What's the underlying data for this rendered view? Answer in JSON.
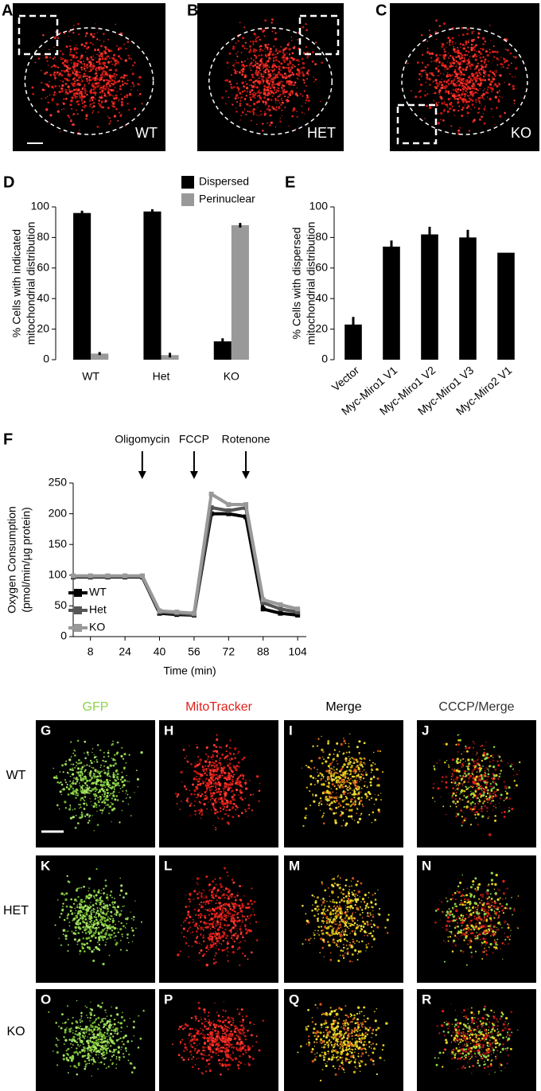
{
  "image_panels": [
    {
      "label": "A",
      "text": "WT"
    },
    {
      "label": "B",
      "text": "HET"
    },
    {
      "label": "C",
      "text": "KO"
    }
  ],
  "chart_data": [
    {
      "type": "bar",
      "label": "D",
      "y_label": [
        "% Cells with indicated",
        "mitochondrial distribution"
      ],
      "categories": [
        "WT",
        "Het",
        "KO"
      ],
      "series": [
        {
          "name": "Dispersed",
          "color": "#000000",
          "values": [
            96,
            97,
            12
          ],
          "errors": [
            1.5,
            1.5,
            2
          ]
        },
        {
          "name": "Perinuclear",
          "color": "#999999",
          "values": [
            4,
            3,
            88
          ],
          "errors": [
            1,
            1.5,
            1.5
          ]
        }
      ],
      "ylim": [
        0,
        100
      ],
      "yticks": [
        0,
        20,
        40,
        60,
        80,
        100
      ],
      "legend": "top-right"
    },
    {
      "type": "bar",
      "label": "E",
      "y_label": [
        "% Cells with dispersed",
        "mitochondrial distribution"
      ],
      "categories": [
        "Vector",
        "Myc-Miro1 V1",
        "Myc-Miro1 V2",
        "Myc-Miro1 V3",
        "Myc-Miro2 V1"
      ],
      "values": [
        23,
        74,
        82,
        80,
        70
      ],
      "errors": [
        5,
        4,
        5,
        5,
        0
      ],
      "color": "#000000",
      "ylim": [
        0,
        100
      ],
      "yticks": [
        0,
        20,
        40,
        60,
        80,
        100
      ]
    },
    {
      "type": "line",
      "label": "F",
      "x_label": "Time (min)",
      "y_label": [
        "Oxygen Consumption",
        "(pmol/min/µg protein)"
      ],
      "x": [
        0,
        8,
        16,
        24,
        32,
        40,
        48,
        56,
        64,
        72,
        80,
        88,
        96,
        104
      ],
      "series": [
        {
          "name": "WT",
          "color": "#000000",
          "values": [
            97,
            97,
            97,
            97,
            97,
            38,
            36,
            35,
            200,
            200,
            195,
            45,
            38,
            35
          ]
        },
        {
          "name": "Het",
          "color": "#555555",
          "values": [
            98,
            98,
            98,
            98,
            98,
            40,
            38,
            36,
            210,
            205,
            210,
            55,
            45,
            40
          ]
        },
        {
          "name": "KO",
          "color": "#999999",
          "values": [
            99,
            99,
            99,
            99,
            99,
            42,
            40,
            38,
            232,
            215,
            215,
            60,
            52,
            45
          ]
        }
      ],
      "annotations": [
        {
          "text": "Oligomycin",
          "x": 32
        },
        {
          "text": "FCCP",
          "x": 56
        },
        {
          "text": "Rotenone",
          "x": 80
        }
      ],
      "xlim": [
        0,
        108
      ],
      "xticks": [
        8,
        24,
        40,
        56,
        72,
        88,
        104
      ],
      "ylim": [
        0,
        250
      ],
      "yticks": [
        0,
        50,
        100,
        150,
        200,
        250
      ],
      "legend": "bottom-left"
    }
  ],
  "microscopy": {
    "columns": [
      "GFP",
      "MitoTracker",
      "Merge",
      "CCCP/Merge"
    ],
    "column_colors": [
      "#8ed34a",
      "#e0201b",
      "#000000",
      "#333333"
    ],
    "rows": [
      {
        "name": "WT",
        "labels": [
          "G",
          "H",
          "I",
          "J"
        ]
      },
      {
        "name": "HET",
        "labels": [
          "K",
          "L",
          "M",
          "N"
        ]
      },
      {
        "name": "KO",
        "labels": [
          "O",
          "P",
          "Q",
          "R"
        ]
      }
    ]
  }
}
